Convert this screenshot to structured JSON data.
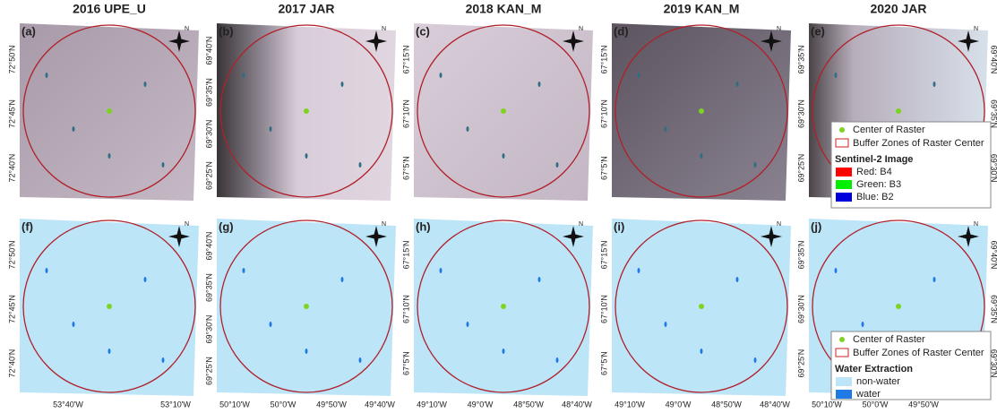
{
  "columns": [
    {
      "title": "2016 UPE_U",
      "lon": [
        "53°40'W",
        "53°10'W"
      ]
    },
    {
      "title": "2017 JAR",
      "lon": [
        "50°10'W",
        "50°0'W",
        "49°50'W",
        "49°40'W"
      ]
    },
    {
      "title": "2018 KAN_M",
      "lon": [
        "49°10'W",
        "49°0'W",
        "48°50'W",
        "48°40'W"
      ]
    },
    {
      "title": "2019 KAN_M",
      "lon": [
        "49°10'W",
        "49°0'W",
        "48°50'W",
        "48°40'W"
      ]
    },
    {
      "title": "2020 JAR",
      "lon": [
        "50°10'W",
        "50°0'W",
        "49°50'W"
      ]
    }
  ],
  "panels": [
    {
      "label": "(a)",
      "lat_left": [
        "72°50'N",
        "72°45'N",
        "72°40'N"
      ],
      "lat_right": []
    },
    {
      "label": "(b)",
      "lat_left": [
        "69°40'N",
        "69°35'N",
        "69°30'N",
        "69°25'N"
      ],
      "lat_right": []
    },
    {
      "label": "(c)",
      "lat_left": [
        "67°15'N",
        "67°10'N",
        "67°5'N"
      ],
      "lat_right": []
    },
    {
      "label": "(d)",
      "lat_left": [
        "67°15'N",
        "67°10'N",
        "67°5'N"
      ],
      "lat_right": []
    },
    {
      "label": "(e)",
      "lat_left": [
        "69°35'N",
        "69°30'N",
        "69°25'N"
      ],
      "lat_right": [
        "69°40'N",
        "69°35'N",
        "69°30'N"
      ]
    },
    {
      "label": "(f)",
      "lat_left": [
        "72°50'N",
        "72°45'N",
        "72°40'N"
      ],
      "lat_right": []
    },
    {
      "label": "(g)",
      "lat_left": [
        "69°40'N",
        "69°35'N",
        "69°30'N",
        "69°25'N"
      ],
      "lat_right": []
    },
    {
      "label": "(h)",
      "lat_left": [
        "67°15'N",
        "67°10'N",
        "67°5'N"
      ],
      "lat_right": []
    },
    {
      "label": "(i)",
      "lat_left": [
        "67°15'N",
        "67°10'N",
        "67°5'N"
      ],
      "lat_right": []
    },
    {
      "label": "(j)",
      "lat_left": [
        "69°35'N",
        "69°30'N",
        "69°25'N"
      ],
      "lat_right": [
        "69°40'N",
        "69°35'N",
        "69°30'N"
      ]
    }
  ],
  "north_label": "N",
  "legend_top": {
    "center": "Center of Raster",
    "buffer": "Buffer Zones of Raster Center",
    "heading": "Sentinel-2 Image",
    "items": [
      {
        "label": "Red: B4",
        "color": "#ff0000"
      },
      {
        "label": "Green: B3",
        "color": "#00ee00"
      },
      {
        "label": "Blue: B2",
        "color": "#0000dd"
      }
    ]
  },
  "legend_bottom": {
    "center": "Center of Raster",
    "buffer": "Buffer Zones of Raster Center",
    "heading": "Water Extraction",
    "items": [
      {
        "label": "non-water",
        "color": "#bde5f8"
      },
      {
        "label": "water",
        "color": "#1e7be6"
      }
    ]
  }
}
